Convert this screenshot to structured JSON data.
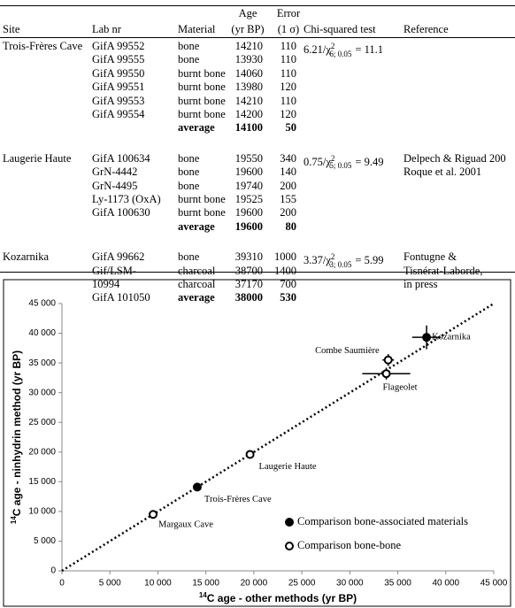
{
  "table": {
    "headers": [
      [
        "Site"
      ],
      [
        "Lab nr"
      ],
      [
        "Material"
      ],
      [
        "Age",
        "(yr BP)"
      ],
      [
        "Error",
        "(1 σ)"
      ],
      [
        "Chi-squared test"
      ],
      [
        "Reference"
      ]
    ],
    "groups": [
      {
        "site": "Trois-Frères Cave",
        "chi": {
          "pre": "6.21/χ",
          "sup": "2",
          "sub": "6; 0.05",
          "post": "= 11.1"
        },
        "rows": [
          {
            "lab": "GifA 99552",
            "material": "bone",
            "age": 14210,
            "error": 110
          },
          {
            "lab": "GifA 99555",
            "material": "bone",
            "age": 13930,
            "error": 110
          },
          {
            "lab": "GifA 99550",
            "material": "burnt bone",
            "age": 14060,
            "error": 110
          },
          {
            "lab": "GifA 99551",
            "material": "burnt bone",
            "age": 13980,
            "error": 120
          },
          {
            "lab": "GifA 99553",
            "material": "burnt bone",
            "age": 14210,
            "error": 110
          },
          {
            "lab": "GifA 99554",
            "material": "burnt bone",
            "age": 14200,
            "error": 120
          },
          {
            "material": "average",
            "age": 14100,
            "error": 50,
            "bold": true
          }
        ]
      },
      {
        "site": "Laugerie Haute",
        "chi": {
          "pre": "0.75/χ",
          "sup": "2",
          "sub": "5; 0.05",
          "post": "= 9.49"
        },
        "reference": [
          "Delpech & Riguad 200",
          "Roque et al. 2001"
        ],
        "rows": [
          {
            "lab": "GifA 100634",
            "material": "bone",
            "age": 19550,
            "error": 340
          },
          {
            "lab": "GrN-4442",
            "material": "bone",
            "age": 19600,
            "error": 140
          },
          {
            "lab": "GrN-4495",
            "material": "bone",
            "age": 19740,
            "error": 200
          },
          {
            "lab": "Ly-1173 (OxA)",
            "material": "burnt bone",
            "age": 19525,
            "error": 155
          },
          {
            "lab": "GifA 100630",
            "material": "burnt bone",
            "age": 19600,
            "error": 200
          },
          {
            "material": "average",
            "age": 19600,
            "error": 80,
            "bold": true
          }
        ]
      },
      {
        "site": "Kozarnika",
        "chi": {
          "pre": "3.37/χ",
          "sup": "2",
          "sub": "3; 0.05",
          "post": "= 5.99"
        },
        "reference": [
          "Fontugne &",
          "Tisnérat-Laborde,",
          "in press"
        ],
        "rows": [
          {
            "lab": "GifA 99662",
            "material": "bone",
            "age": 39310,
            "error": 1000
          },
          {
            "lab": "Gif/LSM-",
            "material": "charcoal",
            "age": 38700,
            "error": 1400
          },
          {
            "lab": "10994",
            "material": "charcoal",
            "age": 37170,
            "error": 700
          },
          {
            "lab": "GifA 101050",
            "material": "average",
            "age": 38000,
            "error": 530,
            "bold": true
          }
        ]
      }
    ]
  },
  "chart_data": {
    "type": "scatter",
    "x_label": {
      "sup": "14",
      "text": "C age - other methods (yr BP)"
    },
    "y_label": {
      "sup": "14",
      "text": "C age - ninhydrin method (yr BP)"
    },
    "xlim": [
      0,
      45000
    ],
    "ylim": [
      0,
      45000
    ],
    "xticks": [
      0,
      {
        "value": 5000,
        "label": "5 000"
      },
      {
        "value": 10000,
        "label": "10 000"
      },
      {
        "value": 15000,
        "label": "15 000"
      },
      {
        "value": 20000,
        "label": "20 000"
      },
      {
        "value": 25000,
        "label": "25 000"
      },
      {
        "value": 30000,
        "label": "30 000"
      },
      {
        "value": 35000,
        "label": "35 000"
      },
      {
        "value": 40000,
        "label": "40 000"
      },
      {
        "value": 45000,
        "label": "45 000"
      }
    ],
    "yticks": [
      0,
      {
        "value": 5000,
        "label": "5 000"
      },
      {
        "value": 10000,
        "label": "10 000"
      },
      {
        "value": 15000,
        "label": "15 000"
      },
      {
        "value": 20000,
        "label": "20 000"
      },
      {
        "value": 25000,
        "label": "25 000"
      },
      {
        "value": 30000,
        "label": "30 000"
      },
      {
        "value": 35000,
        "label": "35 000"
      },
      {
        "value": 40000,
        "label": "40 000"
      },
      {
        "value": 45000,
        "label": "45 000"
      }
    ],
    "grid": false,
    "series": [
      {
        "name": "Comparison bone-associated materials",
        "color": "#000000",
        "marker": "filled",
        "x": [
          14100,
          38000
        ],
        "values": [
          14100,
          39310
        ],
        "xerr": [
          null,
          1500
        ],
        "yerr": [
          null,
          2000
        ],
        "labels": [
          "Trois-Frères Cave",
          "Kozarnika"
        ]
      },
      {
        "name": "Comparison bone-bone",
        "color": "#000000",
        "marker": "open",
        "x": [
          9500,
          19600,
          34000,
          33800
        ],
        "values": [
          9500,
          19600,
          35500,
          33200
        ],
        "xerr": [
          null,
          null,
          600,
          2500
        ],
        "yerr": [
          null,
          null,
          1000,
          1000
        ],
        "labels": [
          "Margaux Cave",
          "Laugerie Haute",
          "Combe Saumière",
          "Flageolet"
        ]
      }
    ]
  }
}
